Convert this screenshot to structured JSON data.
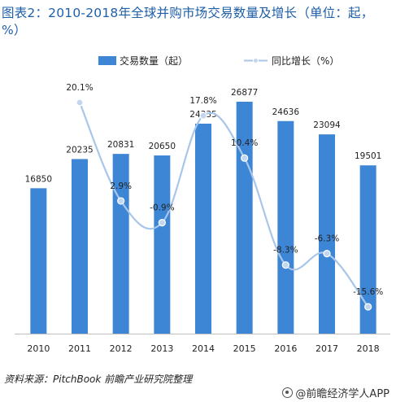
{
  "title": "图表2：2010-2018年全球并购市场交易数量及增长（单位：起，%）",
  "source": "资料来源：PitchBook 前瞻产业研究院整理",
  "brand": "@前瞻经济学人APP",
  "colors": {
    "bar": "#3d86d6",
    "line": "#a9c6ea",
    "marker": "#c2d6ef",
    "text": "#222222",
    "title": "#1f5fa8"
  },
  "chart_data": {
    "type": "bar",
    "categories": [
      "2010",
      "2011",
      "2012",
      "2013",
      "2014",
      "2015",
      "2016",
      "2017",
      "2018"
    ],
    "series": [
      {
        "name": "交易数量（起）",
        "type": "bar",
        "axis": "left",
        "values": [
          16850,
          20235,
          20831,
          20650,
          24335,
          26877,
          24636,
          23094,
          19501
        ],
        "labels": [
          "16850",
          "20235",
          "20831",
          "20650",
          "24335",
          "26877",
          "24636",
          "23094",
          "19501"
        ]
      },
      {
        "name": "同比增长（%）",
        "type": "line",
        "axis": "right",
        "values": [
          null,
          20.1,
          2.9,
          -0.9,
          17.8,
          10.4,
          -8.3,
          -6.3,
          -15.6
        ],
        "labels": [
          "",
          "20.1%",
          "2.9%",
          "-0.9%",
          "17.8%",
          "10.4%",
          "-8.3%",
          "-6.3%",
          "-15.6%"
        ]
      }
    ],
    "legend_position": "top-center",
    "grid": false
  }
}
